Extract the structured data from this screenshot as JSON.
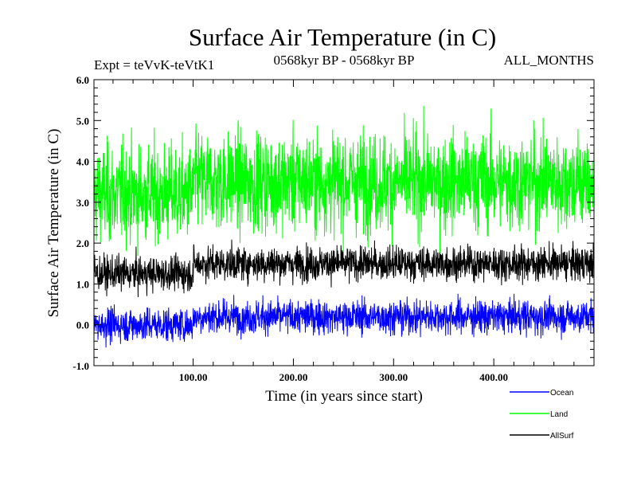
{
  "chart_data": {
    "type": "line",
    "title": "Surface Air Temperature (in C)",
    "subtitle_left": "Expt = teVvK-teVtK1",
    "subtitle_center": "0568kyr BP - 0568kyr BP",
    "subtitle_right": "ALL_MONTHS",
    "xlabel": "Time (in years since start)",
    "ylabel": "Surface Air Temperature (in C)",
    "xlim": [
      1,
      500
    ],
    "ylim": [
      -1.0,
      6.0
    ],
    "xticks": [
      100,
      200,
      300,
      400
    ],
    "xtick_labels": [
      "100.00",
      "200.00",
      "300.00",
      "400.00"
    ],
    "yticks": [
      -1.0,
      0.0,
      1.0,
      2.0,
      3.0,
      4.0,
      5.0,
      6.0
    ],
    "ytick_labels": [
      "-1.0",
      "0.0",
      "1.0",
      "2.0",
      "3.0",
      "4.0",
      "5.0",
      "6.0"
    ],
    "grid": false,
    "legend_position": "bottom-right",
    "series": [
      {
        "name": "Ocean",
        "color": "#0000ff",
        "segments": [
          {
            "x_start": 1,
            "x_end": 100,
            "mean": 0.0,
            "spread": 0.35
          },
          {
            "x_start": 100,
            "x_end": 500,
            "mean": 0.2,
            "spread": 0.35
          }
        ]
      },
      {
        "name": "Land",
        "color": "#00ff00",
        "segments": [
          {
            "x_start": 1,
            "x_end": 100,
            "mean": 3.2,
            "spread": 1.0
          },
          {
            "x_start": 100,
            "x_end": 500,
            "mean": 3.5,
            "spread": 1.0
          }
        ]
      },
      {
        "name": "AllSurf",
        "color": "#000000",
        "segments": [
          {
            "x_start": 1,
            "x_end": 100,
            "mean": 1.25,
            "spread": 0.35
          },
          {
            "x_start": 100,
            "x_end": 500,
            "mean": 1.5,
            "spread": 0.35
          }
        ]
      }
    ]
  }
}
